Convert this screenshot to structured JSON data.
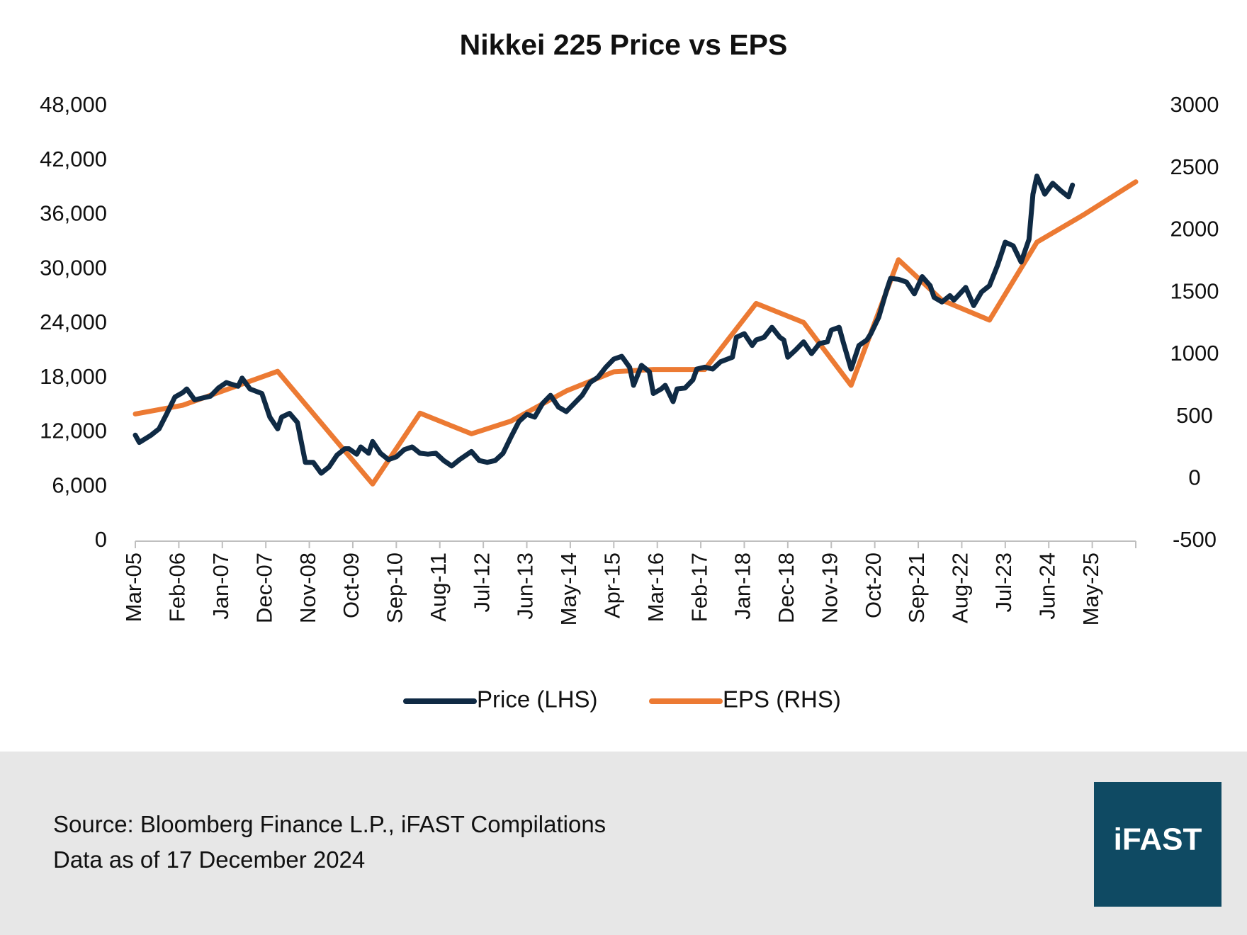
{
  "chart_data": {
    "type": "line",
    "title": "Nikkei 225 Price vs EPS",
    "xlim": [
      "2005-03",
      "2026-04"
    ],
    "xticks": [
      {
        "value": "2005-03",
        "label": "Mar-05"
      },
      {
        "value": "2006-02",
        "label": "Feb-06"
      },
      {
        "value": "2007-01",
        "label": "Jan-07"
      },
      {
        "value": "2007-12",
        "label": "Dec-07"
      },
      {
        "value": "2008-11",
        "label": "Nov-08"
      },
      {
        "value": "2009-10",
        "label": "Oct-09"
      },
      {
        "value": "2010-09",
        "label": "Sep-10"
      },
      {
        "value": "2011-08",
        "label": "Aug-11"
      },
      {
        "value": "2012-07",
        "label": "Jul-12"
      },
      {
        "value": "2013-06",
        "label": "Jun-13"
      },
      {
        "value": "2014-05",
        "label": "May-14"
      },
      {
        "value": "2015-04",
        "label": "Apr-15"
      },
      {
        "value": "2016-03",
        "label": "Mar-16"
      },
      {
        "value": "2017-02",
        "label": "Feb-17"
      },
      {
        "value": "2018-01",
        "label": "Jan-18"
      },
      {
        "value": "2018-12",
        "label": "Dec-18"
      },
      {
        "value": "2019-11",
        "label": "Nov-19"
      },
      {
        "value": "2020-10",
        "label": "Oct-20"
      },
      {
        "value": "2021-09",
        "label": "Sep-21"
      },
      {
        "value": "2022-08",
        "label": "Aug-22"
      },
      {
        "value": "2023-07",
        "label": "Jul-23"
      },
      {
        "value": "2024-06",
        "label": "Jun-24"
      },
      {
        "value": "2025-05",
        "label": "May-25"
      }
    ],
    "ylim": [
      0,
      48000
    ],
    "yticks": [
      0,
      {
        "value": 6000,
        "label": "6,000"
      },
      {
        "value": 12000,
        "label": "12,000"
      },
      {
        "value": 18000,
        "label": "18,000"
      },
      {
        "value": 24000,
        "label": "24,000"
      },
      {
        "value": 30000,
        "label": "30,000"
      },
      {
        "value": 36000,
        "label": "36,000"
      },
      {
        "value": 42000,
        "label": "42,000"
      },
      {
        "value": 48000,
        "label": "48,000"
      }
    ],
    "y2lim": [
      -500,
      3000
    ],
    "y2ticks": [
      -500,
      0,
      500,
      1000,
      1500,
      2000,
      2500,
      3000
    ],
    "legend": "bottom",
    "series": [
      {
        "name": "Price (LHS)",
        "color": "#0f2a44",
        "axis": "y",
        "x": [
          "2005-03",
          "2005-04",
          "2005-07",
          "2005-09",
          "2005-11",
          "2006-01",
          "2006-03",
          "2006-04",
          "2006-06",
          "2006-10",
          "2006-12",
          "2007-02",
          "2007-05",
          "2007-06",
          "2007-08",
          "2007-11",
          "2008-01",
          "2008-03",
          "2008-04",
          "2008-06",
          "2008-08",
          "2008-10",
          "2008-12",
          "2009-02",
          "2009-04",
          "2009-06",
          "2009-08",
          "2009-09",
          "2009-11",
          "2009-12",
          "2010-02",
          "2010-03",
          "2010-05",
          "2010-07",
          "2010-09",
          "2010-11",
          "2011-01",
          "2011-03",
          "2011-05",
          "2011-07",
          "2011-09",
          "2011-11",
          "2012-01",
          "2012-04",
          "2012-06",
          "2012-08",
          "2012-10",
          "2012-12",
          "2013-02",
          "2013-04",
          "2013-06",
          "2013-08",
          "2013-10",
          "2013-12",
          "2014-02",
          "2014-04",
          "2014-06",
          "2014-08",
          "2014-10",
          "2014-12",
          "2015-02",
          "2015-04",
          "2015-06",
          "2015-08",
          "2015-09",
          "2015-11",
          "2016-01",
          "2016-02",
          "2016-04",
          "2016-05",
          "2016-07",
          "2016-08",
          "2016-10",
          "2016-12",
          "2017-01",
          "2017-03",
          "2017-05",
          "2017-07",
          "2017-10",
          "2017-11",
          "2018-01",
          "2018-03",
          "2018-04",
          "2018-06",
          "2018-08",
          "2018-10",
          "2018-11",
          "2018-12",
          "2019-02",
          "2019-04",
          "2019-06",
          "2019-08",
          "2019-10",
          "2019-11",
          "2020-01",
          "2020-02",
          "2020-04",
          "2020-06",
          "2020-08",
          "2020-09",
          "2020-11",
          "2021-01",
          "2021-02",
          "2021-04",
          "2021-06",
          "2021-08",
          "2021-10",
          "2021-12",
          "2022-01",
          "2022-03",
          "2022-05",
          "2022-06",
          "2022-09",
          "2022-11",
          "2023-01",
          "2023-03",
          "2023-05",
          "2023-07",
          "2023-09",
          "2023-11",
          "2024-01",
          "2024-02",
          "2024-03",
          "2024-05",
          "2024-07",
          "2024-09",
          "2024-11",
          "2024-12"
        ],
        "values": [
          11700,
          10900,
          11700,
          12400,
          14100,
          15900,
          16400,
          16800,
          15600,
          16000,
          16900,
          17500,
          17100,
          18000,
          16800,
          16300,
          13700,
          12400,
          13700,
          14100,
          13100,
          8700,
          8700,
          7500,
          8200,
          9500,
          10200,
          10200,
          9600,
          10400,
          9700,
          11000,
          9700,
          9000,
          9300,
          10100,
          10400,
          9700,
          9600,
          9700,
          8900,
          8300,
          9000,
          9900,
          8900,
          8700,
          8900,
          9700,
          11500,
          13200,
          14000,
          13700,
          15200,
          16100,
          14800,
          14300,
          15200,
          16100,
          17500,
          18100,
          19200,
          20100,
          20400,
          19200,
          17200,
          19400,
          18700,
          16300,
          16800,
          17200,
          15400,
          16800,
          16900,
          17800,
          19000,
          19200,
          19000,
          19800,
          20300,
          22500,
          22900,
          21600,
          22200,
          22500,
          23600,
          22500,
          22200,
          20300,
          21100,
          22000,
          20700,
          21800,
          22000,
          23300,
          23600,
          22000,
          19000,
          21600,
          22200,
          22900,
          24700,
          27700,
          29000,
          28900,
          28600,
          27300,
          29200,
          28200,
          26900,
          26400,
          27100,
          26600,
          28000,
          26000,
          27500,
          28200,
          30400,
          33000,
          32600,
          30800,
          33300,
          38300,
          40300,
          38300,
          39500,
          38700,
          38000,
          39300
        ]
      },
      {
        "name": "EPS (RHS)",
        "color": "#ec7a33",
        "axis": "y2",
        "x": [
          "2005-03",
          "2006-03",
          "2008-03",
          "2010-03",
          "2011-03",
          "2012-04",
          "2013-02",
          "2014-04",
          "2015-04",
          "2016-02",
          "2017-03",
          "2018-04",
          "2019-04",
          "2020-04",
          "2021-04",
          "2022-03",
          "2023-03",
          "2024-03",
          "2025-03",
          "2026-04"
        ],
        "values": [
          524,
          594,
          867,
          -40,
          530,
          364,
          466,
          709,
          863,
          882,
          882,
          1413,
          1260,
          754,
          1765,
          1439,
          1279,
          1906,
          2130,
          2392
        ]
      }
    ]
  },
  "footer": {
    "source": "Source: Bloomberg Finance L.P., iFAST Compilations",
    "note": "Data as of 17 December 2024",
    "logo": "iFAST"
  }
}
